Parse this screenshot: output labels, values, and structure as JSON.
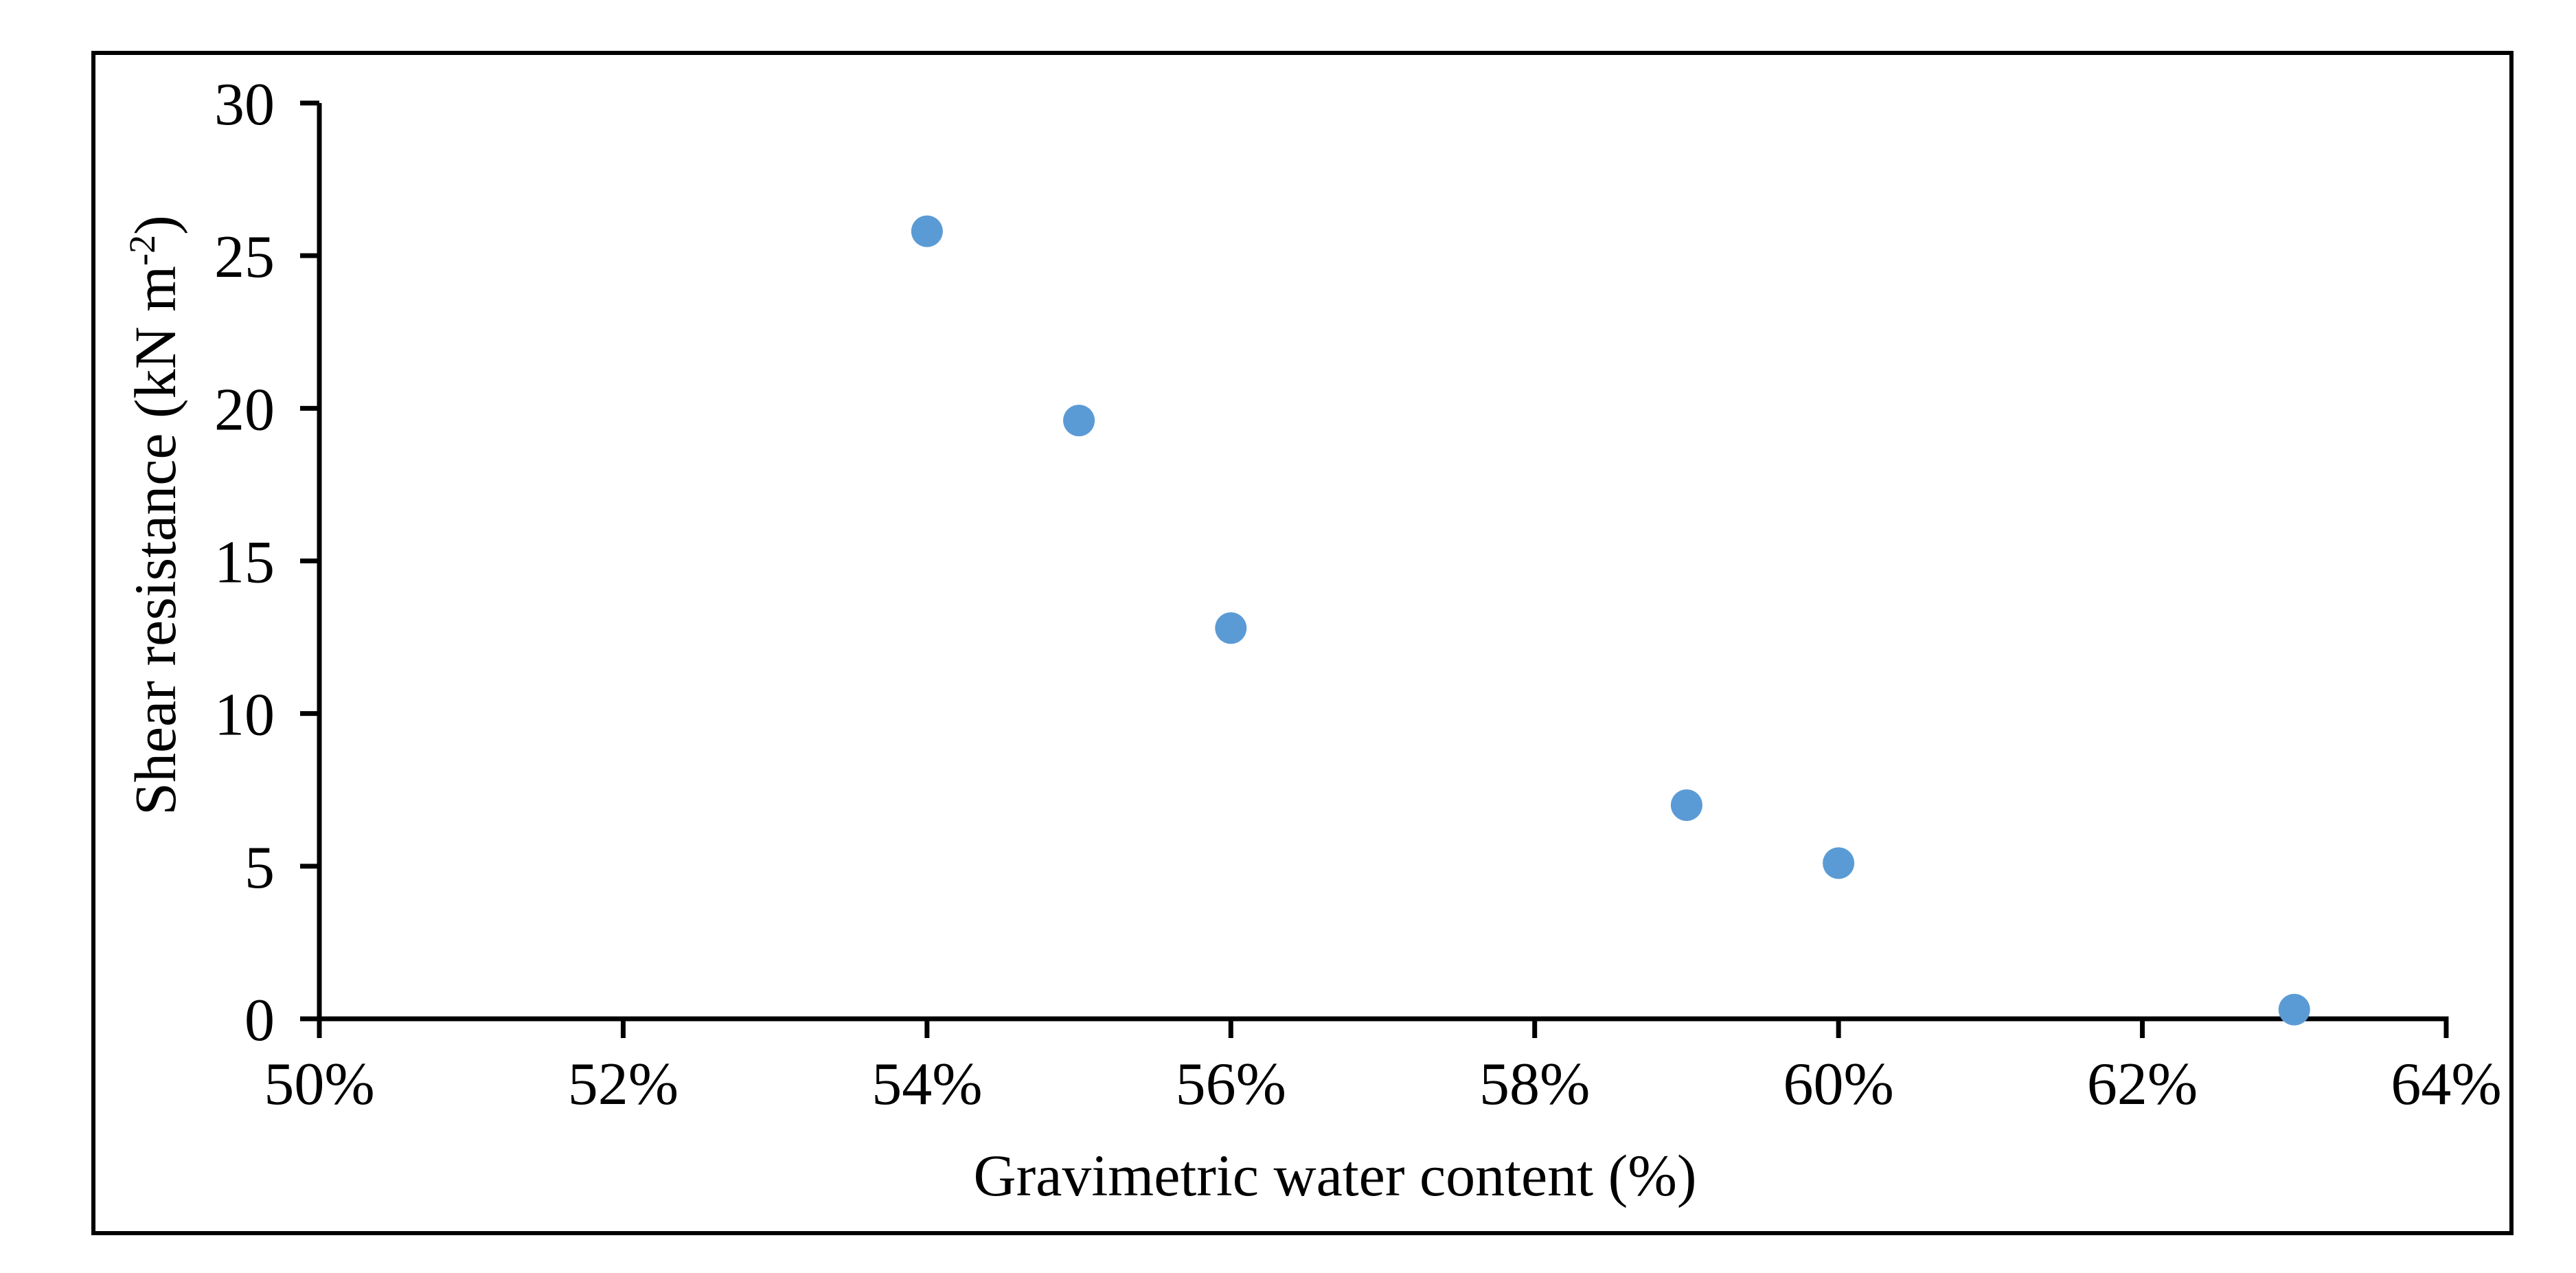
{
  "frame": {
    "background": "#ffffff",
    "border_color": "#000000"
  },
  "chart_data": {
    "type": "scatter",
    "title": "",
    "xlabel": "Gravimetric water content (%)",
    "ylabel": "Shear resistance (kN m⁻²)",
    "ylabel_base": "Shear resistance (kN m",
    "ylabel_sup": "-2",
    "ylabel_end": ")",
    "xlim": [
      50,
      64
    ],
    "ylim": [
      0,
      30
    ],
    "x_tick_values": [
      50,
      52,
      54,
      56,
      58,
      60,
      62,
      64
    ],
    "x_tick_labels": [
      "50%",
      "52%",
      "54%",
      "56%",
      "58%",
      "60%",
      "62%",
      "64%"
    ],
    "y_tick_values": [
      0,
      5,
      10,
      15,
      20,
      25,
      30
    ],
    "y_tick_labels": [
      "0",
      "5",
      "10",
      "15",
      "20",
      "25",
      "30"
    ],
    "grid": false,
    "legend": "none",
    "axis_color": "#000000",
    "marker": {
      "shape": "circle",
      "color": "#5B9BD5",
      "radius_px": 23
    },
    "series": [
      {
        "name": "shear-resistance",
        "points": [
          {
            "x": 54,
            "y": 25.8
          },
          {
            "x": 55,
            "y": 19.6
          },
          {
            "x": 56,
            "y": 12.8
          },
          {
            "x": 59,
            "y": 7.0
          },
          {
            "x": 60,
            "y": 5.1
          },
          {
            "x": 63,
            "y": 0.3
          }
        ]
      }
    ]
  }
}
